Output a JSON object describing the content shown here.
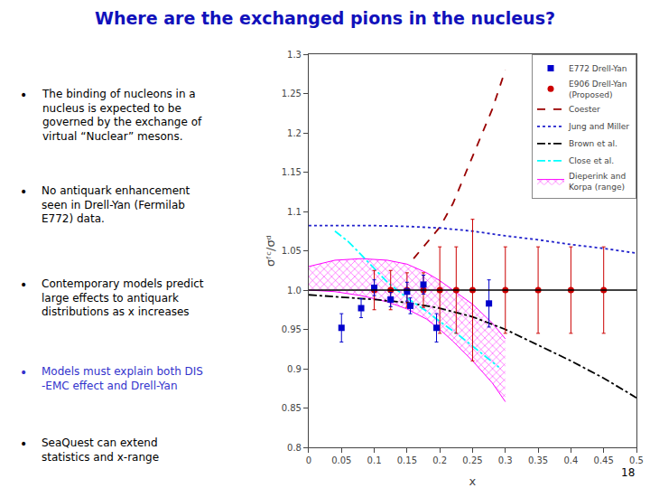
{
  "chart_data": {
    "type": "line",
    "title": {
      "text": "Where are the exchanged pions in the nucleus?",
      "color": "#1111BB"
    },
    "slide_number": "18",
    "annotations": [
      {
        "bullet": "•",
        "text": "The binding of nucleons in a\nnucleus is expected to be\ngoverned by the exchange of\nvirtual “Nuclear” mesons.",
        "color": "#000000"
      },
      {
        "bullet": "•",
        "text": "No antiquark enhancement\nseen in Drell-Yan (Fermilab\nE772) data.",
        "color": "#000000"
      },
      {
        "bullet": "•",
        "text": "Contemporary models predict\nlarge effects to antiquark\ndistributions as x increases",
        "color": "#000000"
      },
      {
        "bullet": "•",
        "text": "Models must explain both DIS\n-EMC effect and Drell-Yan",
        "color": "#3333CC"
      },
      {
        "bullet": "•",
        "text": "SeaQuest can extend\nstatistics and x-range",
        "color": "#000000"
      }
    ],
    "xlabel": "x",
    "ylabel": "σᶠᶜ/σᵈ",
    "xlim": [
      0.0,
      0.5
    ],
    "ylim": [
      0.8,
      1.3
    ],
    "xticks": [
      0,
      0.05,
      0.1,
      0.15,
      0.2,
      0.25,
      0.3,
      0.35,
      0.4,
      0.45,
      0.5
    ],
    "yticks": [
      0.8,
      0.85,
      0.9,
      0.95,
      {
        "value": 1.0,
        "label": "1.0"
      },
      1.05,
      1.1,
      1.15,
      1.2,
      1.25,
      1.3
    ],
    "grid": false,
    "legend": "upper right",
    "hline": {
      "value": 1.0,
      "color": "#000000"
    },
    "series": [
      {
        "name": "E772 Drell-Yan",
        "type": "scatter",
        "marker": "square",
        "color": "#0000CC",
        "x": [
          0.05,
          0.08,
          0.1,
          0.125,
          0.15,
          0.155,
          0.175,
          0.195,
          0.275
        ],
        "values": [
          0.952,
          0.977,
          1.003,
          0.988,
          0.998,
          0.98,
          1.007,
          0.952,
          0.983
        ],
        "error": [
          0.018,
          0.012,
          0.01,
          0.009,
          0.012,
          0.01,
          0.012,
          0.018,
          0.03
        ]
      },
      {
        "name": "E906 Drell-Yan\n(Proposed)",
        "type": "scatter",
        "marker": "circle",
        "color": "#CC0000",
        "x": [
          0.1,
          0.125,
          0.15,
          0.175,
          0.2,
          0.225,
          0.25,
          0.3,
          0.35,
          0.4,
          0.45
        ],
        "values": [
          1.0,
          1.0,
          1.0,
          1.0,
          1.0,
          1.0,
          1.0,
          1.0,
          1.0,
          1.0,
          1.0
        ],
        "error": {
          "minus": [
            0.025,
            0.025,
            0.022,
            0.022,
            0.055,
            0.055,
            0.09,
            0.055,
            0.055,
            0.055,
            0.055
          ],
          "plus": [
            0.025,
            0.025,
            0.022,
            0.022,
            0.055,
            0.055,
            0.09,
            0.055,
            0.055,
            0.055,
            0.055
          ]
        }
      },
      {
        "name": "Coester",
        "type": "line",
        "line_style": "dashed",
        "color": "#990000",
        "x": [
          0.16,
          0.18,
          0.2,
          0.22,
          0.24,
          0.26,
          0.28,
          0.3
        ],
        "values": [
          1.04,
          1.06,
          1.08,
          1.11,
          1.15,
          1.19,
          1.23,
          1.28
        ]
      },
      {
        "name": "Jung and Miller",
        "type": "line",
        "line_style": "dotted",
        "color": "#2222CC",
        "x": [
          0.0,
          0.05,
          0.1,
          0.15,
          0.2,
          0.25,
          0.3,
          0.35,
          0.4,
          0.45,
          0.5
        ],
        "values": [
          1.082,
          1.082,
          1.082,
          1.081,
          1.079,
          1.075,
          1.069,
          1.064,
          1.058,
          1.053,
          1.047
        ]
      },
      {
        "name": "Brown et al.",
        "type": "line",
        "line_style": "dashdot",
        "color": "#000000",
        "x": [
          0.0,
          0.05,
          0.1,
          0.15,
          0.2,
          0.25,
          0.3,
          0.35,
          0.4,
          0.45,
          0.5
        ],
        "values": [
          0.994,
          0.991,
          0.988,
          0.984,
          0.977,
          0.966,
          0.95,
          0.93,
          0.91,
          0.888,
          0.863
        ]
      },
      {
        "name": "Close et al.",
        "type": "line",
        "line_style": "dashdot",
        "color": "#00FFFF",
        "x": [
          0.04,
          0.06,
          0.08,
          0.1,
          0.12,
          0.15,
          0.18,
          0.2,
          0.23,
          0.26,
          0.29
        ],
        "values": [
          1.075,
          1.062,
          1.045,
          1.028,
          1.01,
          0.99,
          0.973,
          0.96,
          0.942,
          0.922,
          0.902
        ]
      },
      {
        "name": "Dieperink and\nKorpa (range)",
        "type": "band",
        "color": "#FF00FF",
        "x": [
          0.0,
          0.04,
          0.08,
          0.12,
          0.15,
          0.18,
          0.2,
          0.22,
          0.25,
          0.28,
          0.3
        ],
        "upper": [
          1.03,
          1.038,
          1.04,
          1.038,
          1.033,
          1.022,
          1.012,
          1.0,
          0.982,
          0.958,
          0.938
        ],
        "lower": [
          1.0,
          0.998,
          0.993,
          0.985,
          0.976,
          0.963,
          0.95,
          0.935,
          0.91,
          0.882,
          0.858
        ]
      }
    ]
  }
}
